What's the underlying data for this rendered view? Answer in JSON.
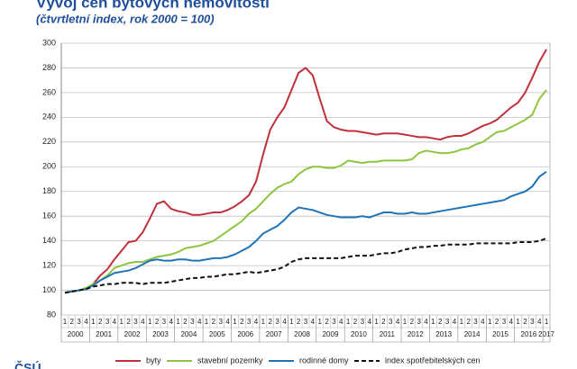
{
  "chart_data": {
    "type": "line",
    "title": "Vývoj cen bytových nemovitostí",
    "subtitle": "(čtvrtletní index, rok 2000 = 100)",
    "logo": "ČSÚ",
    "categories": [
      "1",
      "2",
      "3",
      "4",
      "1",
      "2",
      "3",
      "4",
      "1",
      "2",
      "3",
      "4",
      "1",
      "2",
      "3",
      "4",
      "1",
      "2",
      "3",
      "4",
      "1",
      "2",
      "3",
      "4",
      "1",
      "2",
      "3",
      "4",
      "1",
      "2",
      "3",
      "4",
      "1",
      "2",
      "3",
      "4",
      "1",
      "2",
      "3",
      "4",
      "1",
      "2",
      "3",
      "4",
      "1",
      "2",
      "3",
      "4",
      "1",
      "2",
      "3",
      "4",
      "1",
      "2",
      "3",
      "4",
      "1",
      "2",
      "3",
      "4",
      "1",
      "2",
      "3",
      "4",
      "1",
      "2",
      "3",
      "4",
      "1"
    ],
    "years": [
      "2000",
      "2001",
      "2002",
      "2003",
      "2004",
      "2005",
      "2006",
      "2007",
      "2008",
      "2009",
      "2010",
      "2011",
      "2012",
      "2013",
      "2014",
      "2015",
      "2016",
      "2017"
    ],
    "ylim": [
      80,
      300
    ],
    "yticks": [
      80,
      100,
      120,
      140,
      160,
      180,
      200,
      220,
      240,
      260,
      280,
      300
    ],
    "grid": true,
    "series": [
      {
        "name": "byty",
        "color": "#c0303a",
        "dashed": false,
        "values": [
          98,
          99,
          100,
          101,
          105,
          112,
          117,
          125,
          132,
          139,
          140,
          147,
          158,
          170,
          172,
          166,
          164,
          163,
          161,
          161,
          162,
          163,
          163,
          165,
          168,
          172,
          177,
          188,
          210,
          230,
          240,
          248,
          262,
          276,
          280,
          274,
          255,
          237,
          232,
          230,
          229,
          229,
          228,
          227,
          226,
          227,
          227,
          227,
          226,
          225,
          224,
          224,
          223,
          222,
          224,
          225,
          225,
          227,
          230,
          233,
          235,
          238,
          243,
          248,
          252,
          260,
          272,
          285,
          295
        ]
      },
      {
        "name": "stavební pozemky",
        "color": "#8cc63f",
        "dashed": false,
        "values": [
          98,
          99,
          100,
          102,
          105,
          108,
          112,
          118,
          120,
          122,
          123,
          123,
          125,
          127,
          128,
          129,
          131,
          134,
          135,
          136,
          138,
          140,
          144,
          148,
          152,
          156,
          162,
          166,
          172,
          178,
          183,
          186,
          188,
          194,
          198,
          200,
          200,
          199,
          199,
          201,
          205,
          204,
          203,
          204,
          204,
          205,
          205,
          205,
          205,
          206,
          211,
          213,
          212,
          211,
          211,
          212,
          214,
          215,
          218,
          220,
          224,
          228,
          229,
          232,
          235,
          238,
          242,
          255,
          262
        ]
      },
      {
        "name": "rodinné domy",
        "color": "#1f73b7",
        "dashed": false,
        "values": [
          98,
          99,
          100,
          101,
          104,
          108,
          111,
          114,
          115,
          116,
          118,
          121,
          124,
          125,
          124,
          124,
          125,
          125,
          124,
          124,
          125,
          126,
          126,
          127,
          129,
          132,
          135,
          140,
          146,
          149,
          152,
          157,
          163,
          167,
          166,
          165,
          163,
          161,
          160,
          159,
          159,
          159,
          160,
          159,
          161,
          163,
          163,
          162,
          162,
          163,
          162,
          162,
          163,
          164,
          165,
          166,
          167,
          168,
          169,
          170,
          171,
          172,
          173,
          176,
          178,
          180,
          184,
          192,
          196
        ]
      },
      {
        "name": "index spotřebitelských cen",
        "color": "#111111",
        "dashed": true,
        "values": [
          98,
          99,
          100,
          101,
          103,
          104,
          105,
          105,
          106,
          106,
          106,
          105,
          106,
          106,
          106,
          107,
          108,
          109,
          110,
          110,
          111,
          111,
          112,
          113,
          113,
          114,
          115,
          114,
          115,
          116,
          117,
          119,
          123,
          125,
          126,
          126,
          126,
          126,
          126,
          126,
          127,
          128,
          128,
          128,
          129,
          130,
          130,
          131,
          133,
          134,
          135,
          135,
          136,
          136,
          137,
          137,
          137,
          137,
          138,
          138,
          138,
          138,
          138,
          138,
          139,
          139,
          139,
          140,
          142
        ]
      }
    ]
  }
}
